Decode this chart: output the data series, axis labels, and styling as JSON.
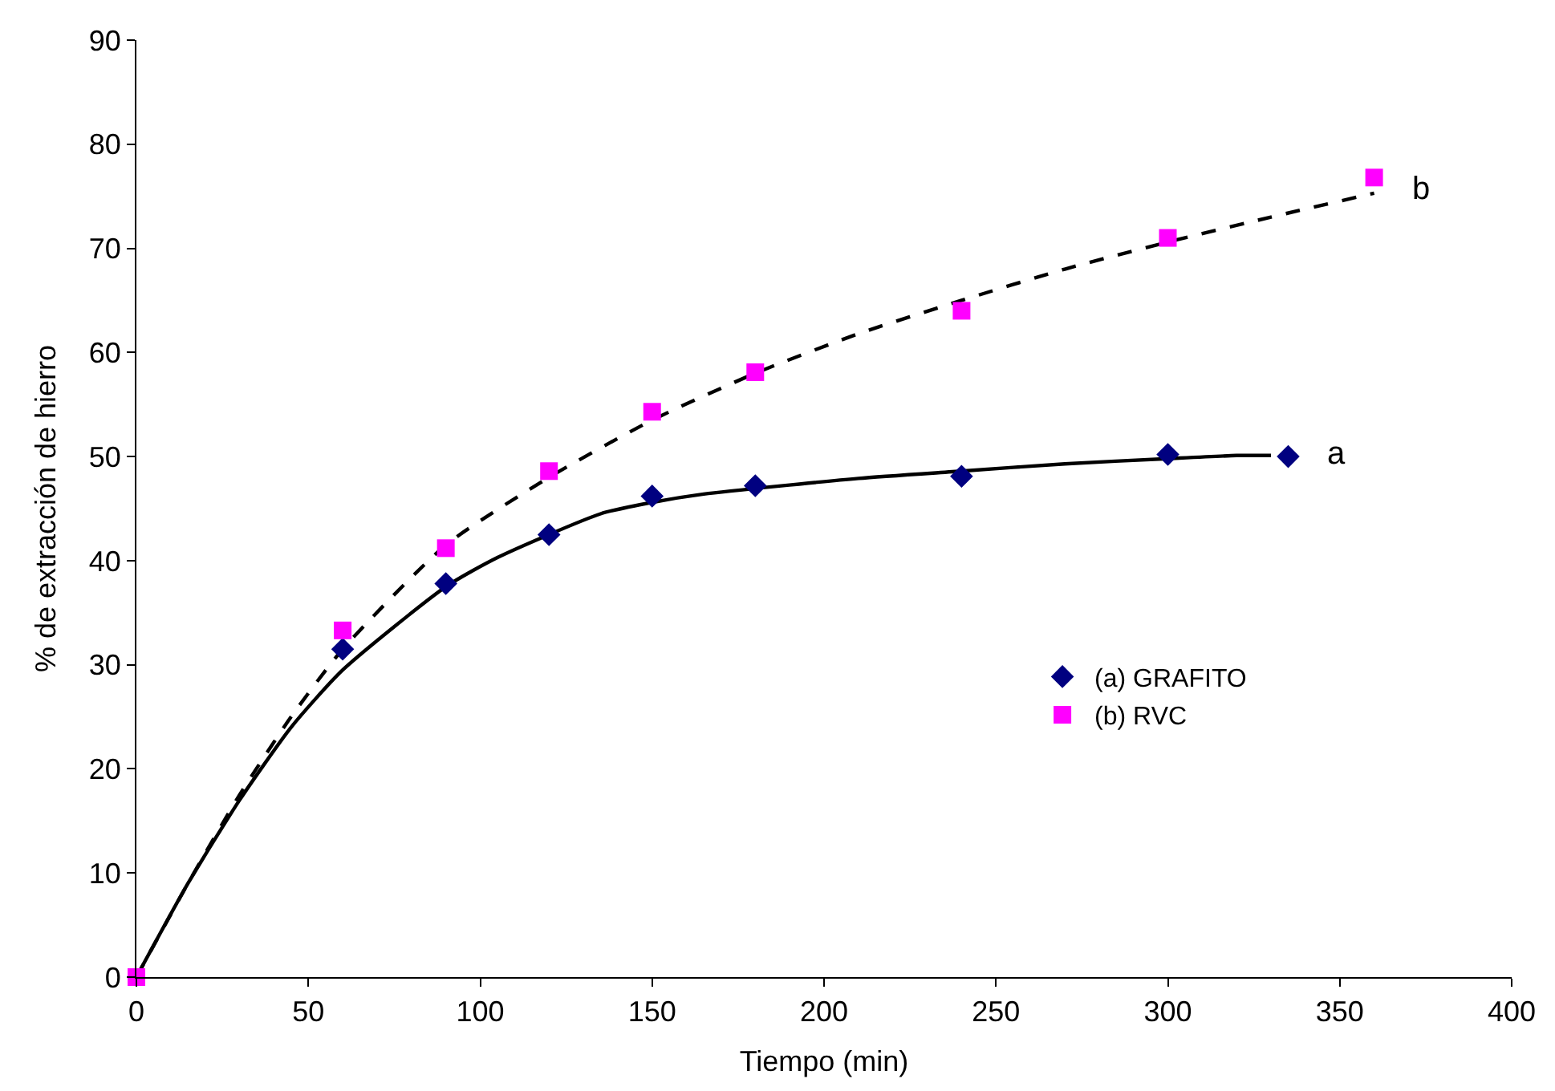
{
  "chart_data": {
    "type": "scatter",
    "xlabel": "Tiempo (min)",
    "ylabel": "% de extracción de hierro",
    "xlim": [
      0,
      400
    ],
    "xticks": [
      0,
      50,
      100,
      150,
      200,
      250,
      300,
      350,
      400
    ],
    "ylim": [
      0,
      90
    ],
    "yticks": [
      0,
      10,
      20,
      30,
      40,
      50,
      60,
      70,
      80,
      90
    ],
    "legend": "right",
    "series": [
      {
        "type": "line",
        "color": "#000000",
        "line_style": "solid",
        "x": [
          0,
          15,
          30,
          45,
          60,
          90,
          105,
          135,
          150,
          165,
          210,
          240,
          270,
          300,
          320,
          330
        ],
        "values": [
          0,
          9,
          17,
          24,
          29.5,
          37.5,
          40.3,
          44.5,
          45.6,
          46.4,
          47.9,
          48.6,
          49.3,
          49.8,
          50.1,
          50.1
        ]
      },
      {
        "type": "line",
        "color": "#000000",
        "line_style": "dashed",
        "x": [
          0,
          15,
          30,
          45,
          60,
          90,
          120,
          150,
          180,
          210,
          240,
          270,
          300,
          330,
          360
        ],
        "values": [
          0,
          9,
          17.5,
          25,
          31.5,
          41.5,
          48,
          53.5,
          58,
          61.8,
          65,
          68,
          70.6,
          73,
          75.3
        ]
      },
      {
        "name": "(a) GRAFITO",
        "marker": "diamond",
        "color": "#000080",
        "x": [
          60,
          90,
          120,
          150,
          180,
          240,
          300,
          335
        ],
        "values": [
          31.5,
          37.8,
          42.5,
          46.2,
          47.2,
          48.1,
          50.2,
          50
        ]
      },
      {
        "name": "(b) RVC",
        "marker": "square",
        "color": "#ff00ff",
        "x": [
          0,
          60,
          90,
          120,
          150,
          180,
          240,
          300,
          360
        ],
        "values": [
          0,
          33.3,
          41.2,
          48.6,
          54.3,
          58.1,
          64,
          71,
          76.8
        ]
      }
    ],
    "annotations": [
      {
        "text": "a",
        "x": 335,
        "y": 50
      },
      {
        "text": "b",
        "x": 360,
        "y": 75.3
      }
    ]
  }
}
